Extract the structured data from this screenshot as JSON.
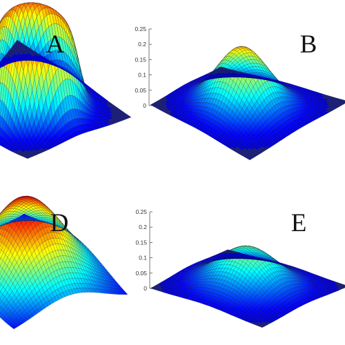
{
  "chart_data": [
    {
      "type": "surface",
      "panel": "A",
      "shape": "flat-top",
      "z_ticks": [],
      "style": {
        "peak_height": 0.2,
        "flat_top": 0.8,
        "width": 0.36
      },
      "colormap": "jet",
      "background_color": "#1b1f7d"
    },
    {
      "type": "surface",
      "panel": "B",
      "shape": "gaussian",
      "z_ticks": [
        "0",
        "0.05",
        "0.1",
        "0.15",
        "0.2",
        "0.25"
      ],
      "style": {
        "peak_height": 0.18,
        "flat_top": 0,
        "width": 0.19
      },
      "colormap": "jet",
      "background_color": "#1b1f7d"
    },
    {
      "type": "surface",
      "panel": "D",
      "shape": "gaussian",
      "z_ticks": [],
      "style": {
        "peak_height": 0.235,
        "flat_top": 0,
        "width": 0.3
      },
      "colormap": "jet",
      "background_color": "#1b1f7d"
    },
    {
      "type": "surface",
      "panel": "E",
      "shape": "gaussian",
      "z_ticks": [
        "0",
        "0.05",
        "0.1",
        "0.15",
        "0.2",
        "0.25"
      ],
      "style": {
        "peak_height": 0.12,
        "flat_top": 0,
        "width": 0.22
      },
      "colormap": "jet",
      "background_color": "#1b1f7d"
    }
  ]
}
